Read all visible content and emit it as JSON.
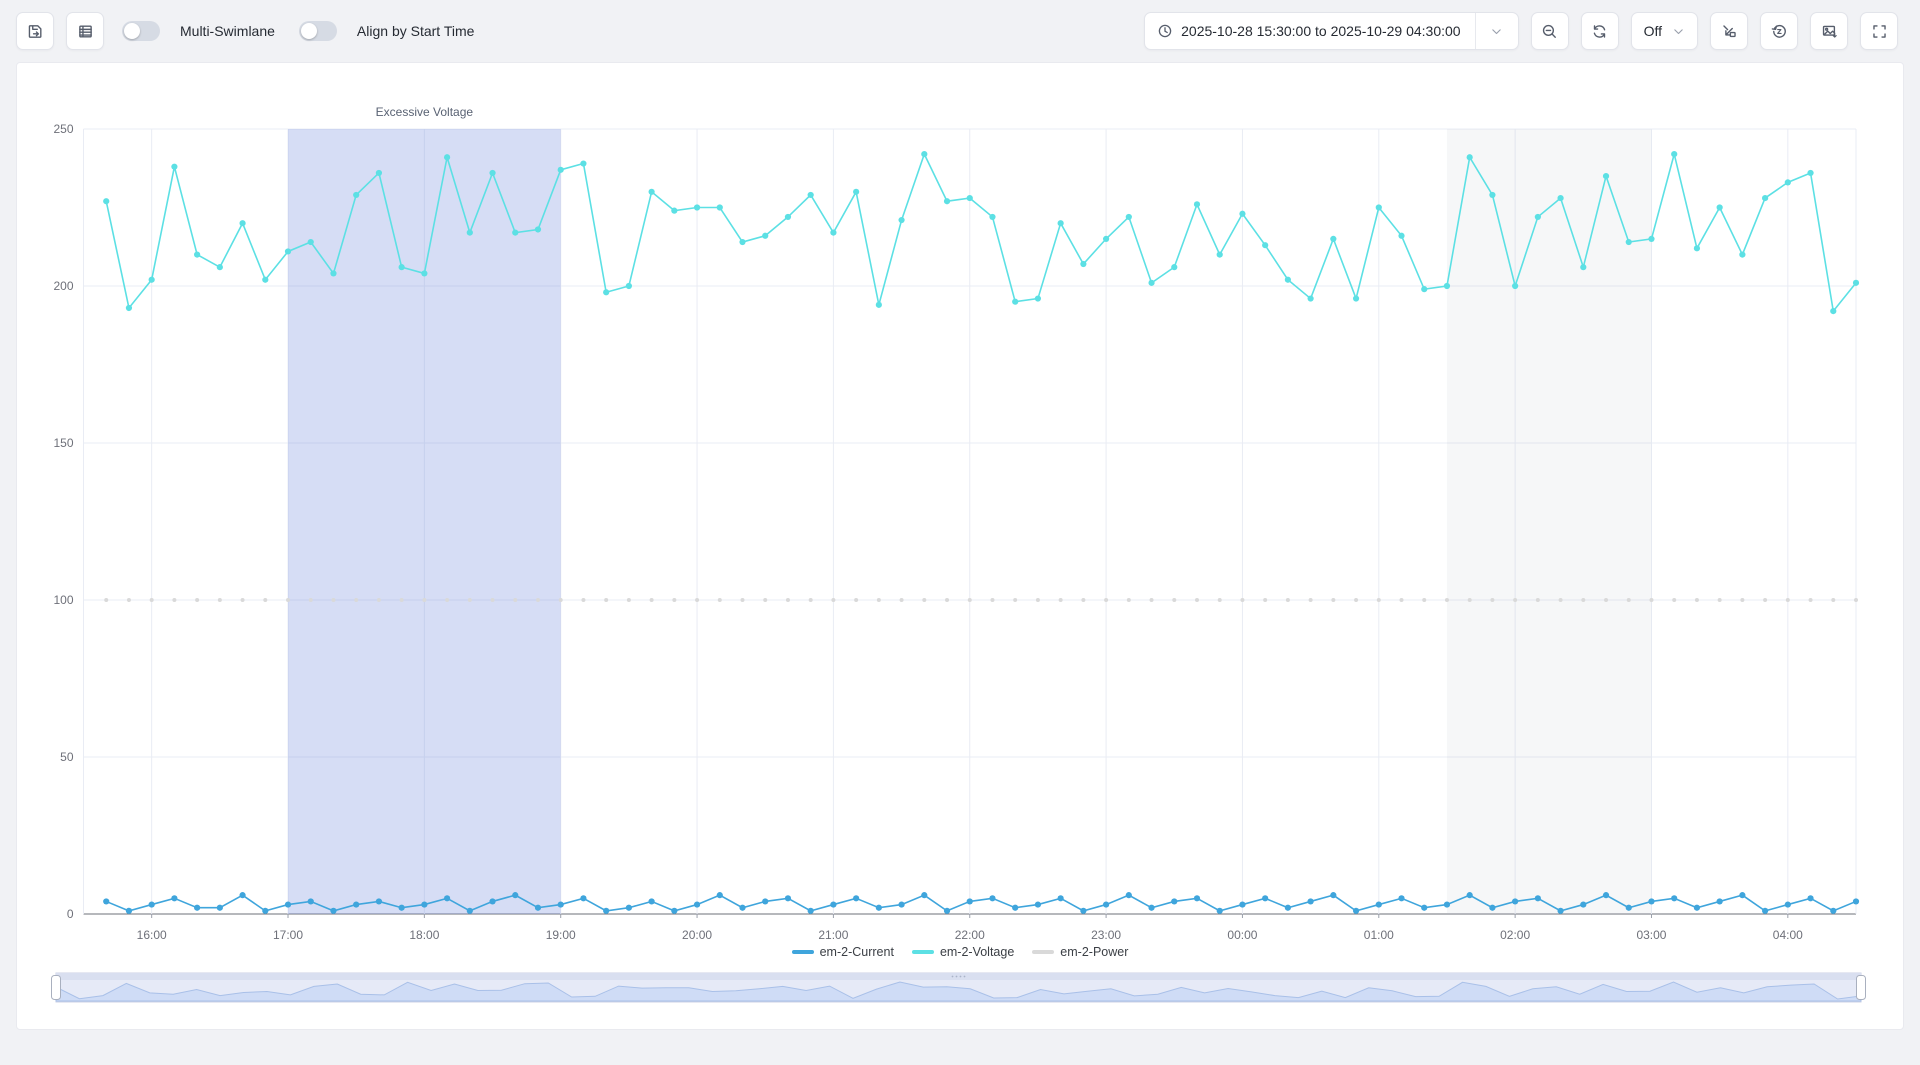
{
  "toolbar": {
    "left_buttons": [
      {
        "icon": "save-export-icon"
      },
      {
        "icon": "table-icon"
      }
    ],
    "toggles": [
      {
        "label": "Multi-Swimlane",
        "state": "off"
      },
      {
        "label": "Align by Start Time",
        "state": "off"
      }
    ],
    "time_range": {
      "value": "2025-10-28 15:30:00 to 2025-10-29 04:30:00",
      "icon": "clock-icon"
    },
    "refresh": {
      "value": "Off"
    },
    "right_buttons": [
      {
        "icon": "zoom-out-icon"
      },
      {
        "icon": "refresh-icon"
      },
      {
        "icon": "shrink-icon"
      },
      {
        "icon": "restore-icon"
      },
      {
        "icon": "save-image-icon"
      },
      {
        "icon": "fullscreen-icon"
      }
    ]
  },
  "chart_data": {
    "type": "line",
    "x_axis": {
      "range_start": "2025-10-28 15:30",
      "range_end": "2025-10-29 04:30",
      "hours_total": 13,
      "first_point_minutes_after_start": 10,
      "point_interval_minutes": 10,
      "tick_labels": [
        "16:00",
        "17:00",
        "18:00",
        "19:00",
        "20:00",
        "21:00",
        "22:00",
        "23:00",
        "00:00",
        "01:00",
        "02:00",
        "03:00",
        "04:00"
      ]
    },
    "ylim": [
      0,
      250
    ],
    "y_ticks": [
      0,
      50,
      100,
      150,
      200,
      250
    ],
    "grid": true,
    "legend_position": "bottom",
    "point_count": 78,
    "series": [
      {
        "name": "em-2-Current",
        "color": "#3FA5DC",
        "style": "line",
        "values": [
          4,
          1,
          3,
          5,
          2,
          2,
          6,
          1,
          3,
          4,
          1,
          3,
          4,
          2,
          3,
          5,
          1,
          4,
          6,
          2,
          3,
          5,
          1,
          2,
          4,
          1,
          3,
          6,
          2,
          4,
          5,
          1,
          3,
          5,
          2,
          3,
          6,
          1,
          4,
          5,
          2,
          3,
          5,
          1,
          3,
          6,
          2,
          4,
          5,
          1,
          3,
          5,
          2,
          4,
          6,
          1,
          3,
          5,
          2,
          3,
          6,
          2,
          4,
          5,
          1,
          3,
          6,
          2,
          4,
          5,
          2,
          4,
          6,
          1,
          3,
          5,
          1,
          4
        ]
      },
      {
        "name": "em-2-Voltage",
        "color": "#5CE0E4",
        "style": "line",
        "values": [
          227,
          193,
          202,
          238,
          210,
          206,
          220,
          202,
          211,
          214,
          204,
          229,
          236,
          206,
          204,
          241,
          217,
          236,
          217,
          218,
          237,
          239,
          198,
          200,
          230,
          224,
          225,
          225,
          214,
          216,
          222,
          229,
          217,
          230,
          194,
          221,
          242,
          227,
          228,
          222,
          195,
          196,
          220,
          207,
          215,
          222,
          201,
          206,
          226,
          210,
          223,
          213,
          202,
          196,
          215,
          196,
          225,
          216,
          199,
          200,
          241,
          229,
          200,
          222,
          228,
          206,
          235,
          214,
          215,
          242,
          212,
          225,
          210,
          228,
          233,
          236,
          192,
          201
        ]
      },
      {
        "name": "em-2-Power",
        "color": "#D9D9D9",
        "style": "dots",
        "constant": 100
      }
    ],
    "mark_areas": [
      {
        "label": "Excessive Voltage",
        "from": "17:00",
        "to": "19:00",
        "from_hour_offset": 1.5,
        "to_hour_offset": 3.5,
        "color": "rgba(118,141,222,0.30)"
      },
      {
        "label": "",
        "from": "01:30",
        "to": "03:00",
        "from_hour_offset": 10,
        "to_hour_offset": 11.5,
        "color": "rgba(185,190,202,0.13)"
      }
    ],
    "colors": {
      "gridline": "#e9ecf4",
      "axis_line": "#6e7079",
      "axis_text": "#6e7079"
    },
    "datazoom": {
      "enabled": true,
      "selected_range": "full",
      "track_color": "#e6eaf7",
      "band_color": "#d9dff0",
      "wave_fill": "#cbdaf6",
      "wave_line": "#9fb9e6"
    }
  }
}
